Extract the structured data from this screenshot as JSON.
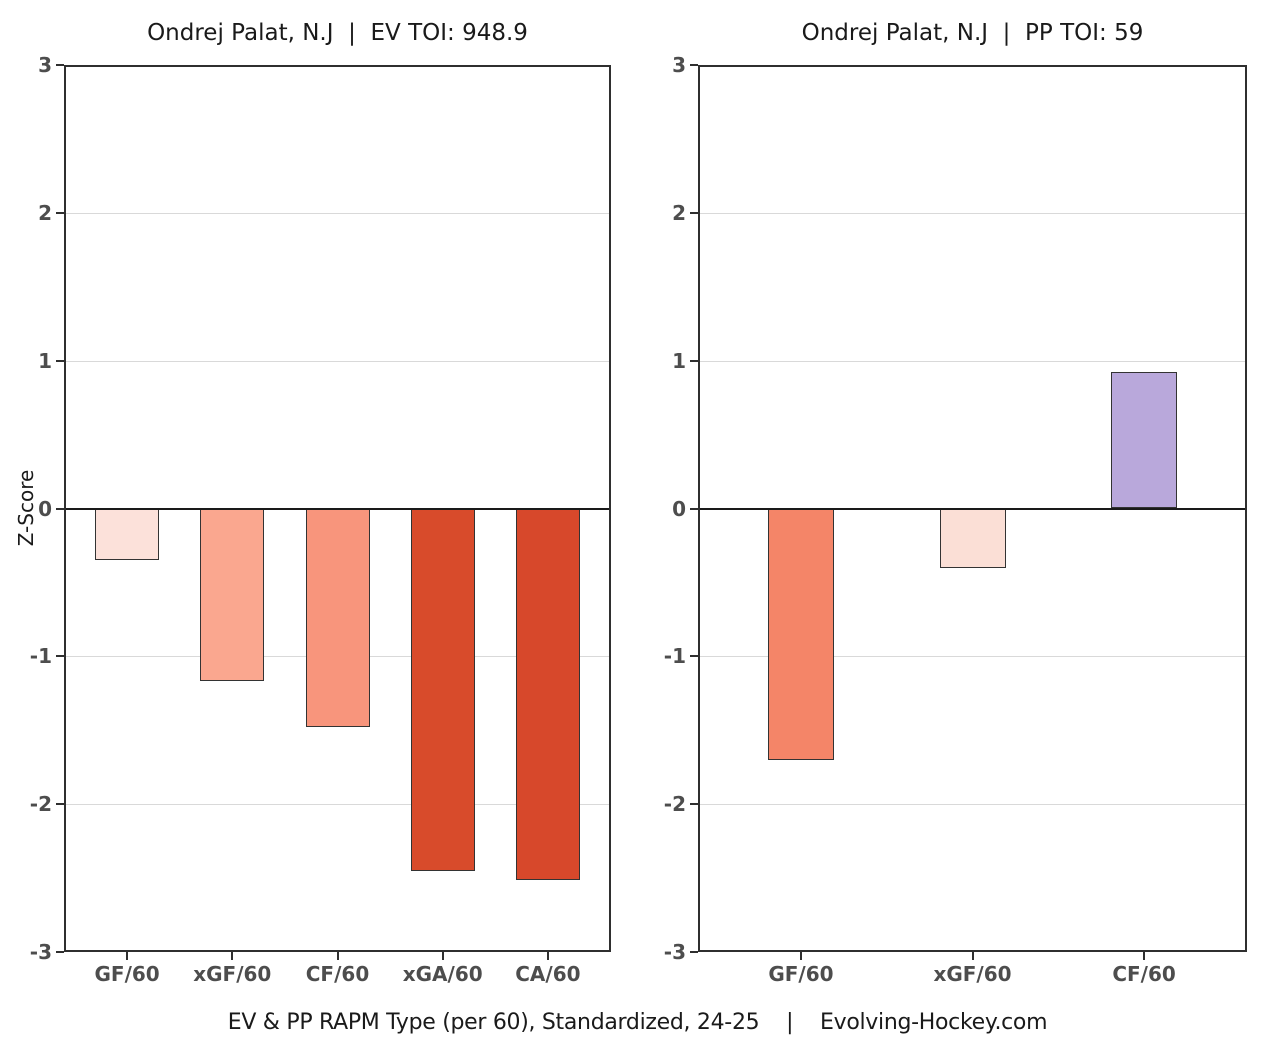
{
  "figure": {
    "y_axis_title": "Z-Score",
    "caption": "EV & PP RAPM Type (per 60), Standardized, 24-25    |    Evolving-Hockey.com"
  },
  "chart_data": [
    {
      "type": "bar",
      "title": "Ondrej Palat, N.J  |  EV TOI: 948.9",
      "categories": [
        "GF/60",
        "xGF/60",
        "CF/60",
        "xGA/60",
        "CA/60"
      ],
      "values": [
        -0.35,
        -1.17,
        -1.48,
        -2.45,
        -2.51
      ],
      "bar_colors": [
        "#FCE1DA",
        "#FAA78F",
        "#F8957C",
        "#D84B2B",
        "#D7482B"
      ],
      "xlabel": "",
      "ylabel": "Z-Score",
      "ylim": [
        -3,
        3
      ],
      "yticks": [
        3,
        2,
        1,
        0,
        -1,
        -2,
        -3
      ],
      "grid": "horizontal-major",
      "zero_line": true,
      "legend": "none"
    },
    {
      "type": "bar",
      "title": "Ondrej Palat, N.J  |  PP TOI: 59",
      "categories": [
        "GF/60",
        "xGF/60",
        "CF/60"
      ],
      "values": [
        -1.7,
        -0.4,
        0.92
      ],
      "bar_colors": [
        "#F48568",
        "#FBDFD6",
        "#B9A8DB"
      ],
      "xlabel": "",
      "ylabel": "",
      "ylim": [
        -3,
        3
      ],
      "yticks": [
        3,
        2,
        1,
        0,
        -1,
        -2,
        -3
      ],
      "grid": "horizontal-major",
      "zero_line": true,
      "legend": "none"
    }
  ],
  "style": {
    "bar_border_color": "#333333",
    "grid_color": "#D9D9D9",
    "axis_text_color": "#4D4D4D",
    "title_color": "#1A1A1A",
    "zero_line_color": "#1A1A1A",
    "panel_border_color": "#2F2F2F",
    "background_color": "#FFFFFF"
  }
}
